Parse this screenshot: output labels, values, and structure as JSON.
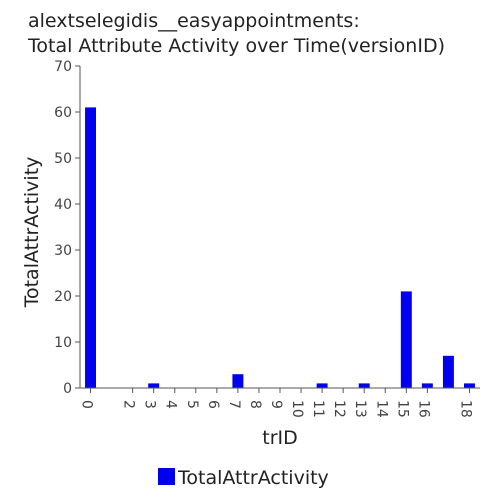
{
  "chart_data": {
    "type": "bar",
    "title_lines": [
      "alextselegidis__easyappointments:",
      "Total Attribute Activity over Time(versionID)"
    ],
    "xlabel": "trID",
    "ylabel": "TotalAttrActivity",
    "ylim": [
      0,
      70
    ],
    "yticks": [
      0,
      10,
      20,
      30,
      40,
      50,
      60,
      70
    ],
    "x_tick_labels": [
      "0",
      "2",
      "3",
      "4",
      "5",
      "6",
      "7",
      "8",
      "9",
      "10",
      "11",
      "12",
      "13",
      "14",
      "15",
      "16",
      "18"
    ],
    "series": [
      {
        "name": "TotalAttrActivity",
        "color": "#0000ee",
        "x": [
          0,
          3,
          7,
          11,
          13,
          15,
          16,
          17,
          18
        ],
        "values": [
          61,
          1,
          3,
          1,
          1,
          21,
          1,
          7,
          1
        ]
      }
    ],
    "legend_position": "bottom-center",
    "grid": false
  }
}
